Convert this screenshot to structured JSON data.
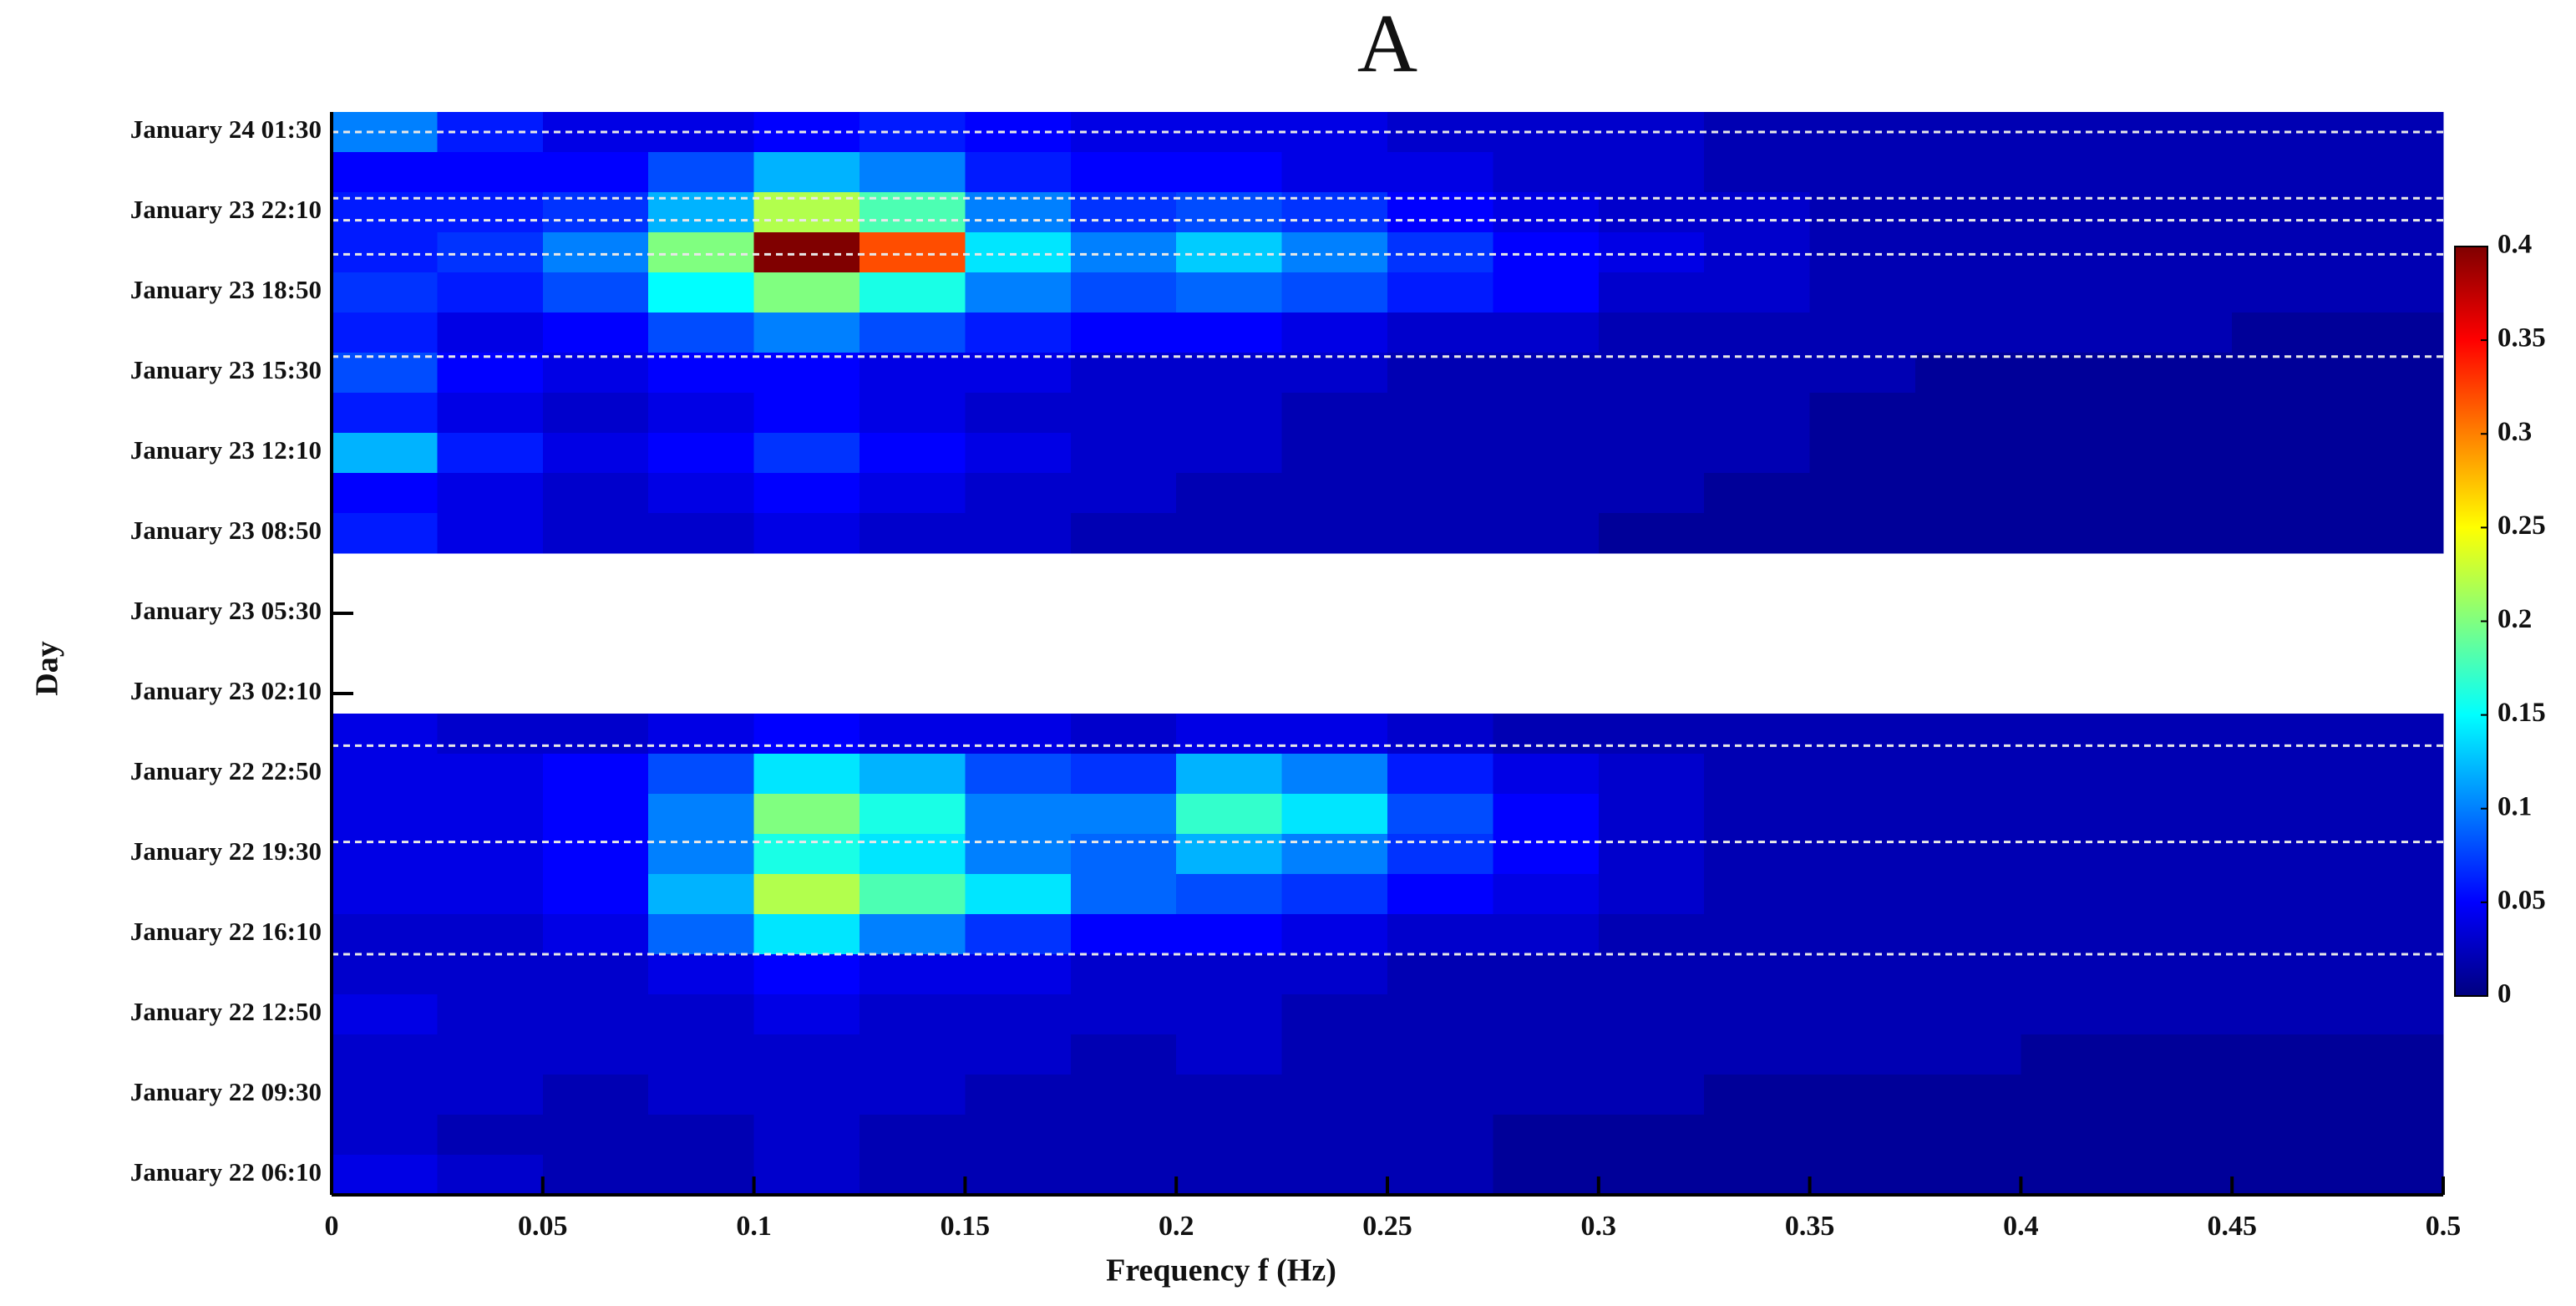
{
  "chart_data": {
    "type": "heatmap",
    "title": "A",
    "xlabel": "Frequency f (Hz)",
    "ylabel": "Day",
    "x_bins": [
      0,
      0.025,
      0.05,
      0.075,
      0.1,
      0.125,
      0.15,
      0.175,
      0.2,
      0.225,
      0.25,
      0.275,
      0.3,
      0.325,
      0.35,
      0.375,
      0.4,
      0.425,
      0.45,
      0.475,
      0.5
    ],
    "xlim": [
      0,
      0.5
    ],
    "xticks": [
      0,
      0.05,
      0.1,
      0.15,
      0.2,
      0.25,
      0.3,
      0.35,
      0.4,
      0.45,
      0.5
    ],
    "categories": [
      "January 24 01:30",
      null,
      "January 23 22:10",
      null,
      "January 23 18:50",
      null,
      "January 23 15:30",
      null,
      "January 23 12:10",
      null,
      "January 23 08:50",
      null,
      "January 23 05:30",
      null,
      "January 23 02:10",
      null,
      "January 22 22:50",
      null,
      "January 22 19:30",
      null,
      "January 22 16:10",
      null,
      "January 22 12:50",
      null,
      "January 22 09:30",
      null,
      "January 22 06:10"
    ],
    "values": [
      [
        0.1,
        0.06,
        0.04,
        0.04,
        0.05,
        0.06,
        0.05,
        0.04,
        0.04,
        0.04,
        0.03,
        0.03,
        0.03,
        0.02,
        0.02,
        0.02,
        0.02,
        0.02,
        0.02,
        0.02
      ],
      [
        0.05,
        0.05,
        0.05,
        0.08,
        0.12,
        0.1,
        0.06,
        0.05,
        0.05,
        0.04,
        0.04,
        0.03,
        0.03,
        0.02,
        0.02,
        0.02,
        0.02,
        0.02,
        0.02,
        0.02
      ],
      [
        0.06,
        0.06,
        0.07,
        0.12,
        0.22,
        0.18,
        0.1,
        0.07,
        0.08,
        0.07,
        0.05,
        0.04,
        0.03,
        0.03,
        0.02,
        0.02,
        0.02,
        0.02,
        0.02,
        0.02
      ],
      [
        0.06,
        0.07,
        0.1,
        0.2,
        0.4,
        0.32,
        0.14,
        0.1,
        0.13,
        0.1,
        0.07,
        0.05,
        0.04,
        0.03,
        0.02,
        0.02,
        0.02,
        0.02,
        0.02,
        0.02
      ],
      [
        0.07,
        0.06,
        0.08,
        0.15,
        0.2,
        0.16,
        0.1,
        0.08,
        0.09,
        0.08,
        0.06,
        0.05,
        0.03,
        0.03,
        0.02,
        0.02,
        0.02,
        0.02,
        0.02,
        0.02
      ],
      [
        0.06,
        0.04,
        0.05,
        0.08,
        0.1,
        0.08,
        0.06,
        0.05,
        0.05,
        0.04,
        0.03,
        0.03,
        0.02,
        0.02,
        0.02,
        0.02,
        0.02,
        0.02,
        0.01,
        0.01
      ],
      [
        0.08,
        0.05,
        0.04,
        0.05,
        0.05,
        0.04,
        0.04,
        0.03,
        0.03,
        0.03,
        0.02,
        0.02,
        0.02,
        0.02,
        0.02,
        0.01,
        0.01,
        0.01,
        0.01,
        0.01
      ],
      [
        0.06,
        0.04,
        0.03,
        0.04,
        0.05,
        0.04,
        0.03,
        0.03,
        0.03,
        0.02,
        0.02,
        0.02,
        0.02,
        0.02,
        0.01,
        0.01,
        0.01,
        0.01,
        0.01,
        0.01
      ],
      [
        0.12,
        0.06,
        0.04,
        0.05,
        0.07,
        0.05,
        0.04,
        0.03,
        0.03,
        0.02,
        0.02,
        0.02,
        0.02,
        0.02,
        0.01,
        0.01,
        0.01,
        0.01,
        0.01,
        0.01
      ],
      [
        0.05,
        0.04,
        0.03,
        0.04,
        0.05,
        0.04,
        0.03,
        0.03,
        0.02,
        0.02,
        0.02,
        0.02,
        0.02,
        0.01,
        0.01,
        0.01,
        0.01,
        0.01,
        0.01,
        0.01
      ],
      [
        0.06,
        0.04,
        0.03,
        0.03,
        0.04,
        0.03,
        0.03,
        0.02,
        0.02,
        0.02,
        0.02,
        0.02,
        0.01,
        0.01,
        0.01,
        0.01,
        0.01,
        0.01,
        0.01,
        0.01
      ],
      null,
      null,
      null,
      null,
      [
        0.04,
        0.03,
        0.03,
        0.04,
        0.05,
        0.04,
        0.04,
        0.03,
        0.04,
        0.04,
        0.03,
        0.02,
        0.02,
        0.02,
        0.02,
        0.02,
        0.02,
        0.02,
        0.02,
        0.02
      ],
      [
        0.04,
        0.04,
        0.05,
        0.08,
        0.14,
        0.12,
        0.08,
        0.07,
        0.12,
        0.1,
        0.06,
        0.04,
        0.03,
        0.02,
        0.02,
        0.02,
        0.02,
        0.02,
        0.02,
        0.02
      ],
      [
        0.04,
        0.04,
        0.05,
        0.1,
        0.2,
        0.16,
        0.1,
        0.1,
        0.17,
        0.14,
        0.08,
        0.05,
        0.03,
        0.02,
        0.02,
        0.02,
        0.02,
        0.02,
        0.02,
        0.02
      ],
      [
        0.04,
        0.04,
        0.05,
        0.1,
        0.16,
        0.14,
        0.1,
        0.09,
        0.12,
        0.1,
        0.07,
        0.05,
        0.03,
        0.02,
        0.02,
        0.02,
        0.02,
        0.02,
        0.02,
        0.02
      ],
      [
        0.04,
        0.04,
        0.05,
        0.12,
        0.22,
        0.18,
        0.14,
        0.09,
        0.08,
        0.07,
        0.05,
        0.04,
        0.03,
        0.02,
        0.02,
        0.02,
        0.02,
        0.02,
        0.02,
        0.02
      ],
      [
        0.03,
        0.03,
        0.04,
        0.09,
        0.14,
        0.1,
        0.07,
        0.05,
        0.05,
        0.04,
        0.03,
        0.03,
        0.02,
        0.02,
        0.02,
        0.02,
        0.02,
        0.02,
        0.02,
        0.02
      ],
      [
        0.03,
        0.03,
        0.03,
        0.04,
        0.05,
        0.04,
        0.04,
        0.03,
        0.03,
        0.03,
        0.02,
        0.02,
        0.02,
        0.02,
        0.02,
        0.02,
        0.02,
        0.02,
        0.02,
        0.02
      ],
      [
        0.04,
        0.03,
        0.03,
        0.03,
        0.04,
        0.03,
        0.03,
        0.03,
        0.03,
        0.02,
        0.02,
        0.02,
        0.02,
        0.02,
        0.02,
        0.02,
        0.02,
        0.02,
        0.02,
        0.02
      ],
      [
        0.03,
        0.03,
        0.03,
        0.03,
        0.03,
        0.03,
        0.03,
        0.02,
        0.03,
        0.02,
        0.02,
        0.02,
        0.02,
        0.02,
        0.02,
        0.02,
        0.01,
        0.01,
        0.01,
        0.01
      ],
      [
        0.03,
        0.03,
        0.02,
        0.03,
        0.03,
        0.03,
        0.02,
        0.02,
        0.02,
        0.02,
        0.02,
        0.02,
        0.02,
        0.01,
        0.01,
        0.01,
        0.01,
        0.01,
        0.01,
        0.01
      ],
      [
        0.03,
        0.02,
        0.02,
        0.02,
        0.03,
        0.02,
        0.02,
        0.02,
        0.02,
        0.02,
        0.02,
        0.01,
        0.01,
        0.01,
        0.01,
        0.01,
        0.01,
        0.01,
        0.01,
        0.01
      ],
      [
        0.04,
        0.03,
        0.02,
        0.02,
        0.03,
        0.02,
        0.02,
        0.02,
        0.02,
        0.02,
        0.02,
        0.01,
        0.01,
        0.01,
        0.01,
        0.01,
        0.01,
        0.01,
        0.01,
        0.01
      ]
    ],
    "reference_lines": [
      0,
      1.65,
      2.2,
      3.05,
      5.6,
      15.3,
      17.7,
      20.5
    ],
    "colormap": "jet",
    "clim": [
      0,
      0.4
    ],
    "cticks": [
      0,
      0.05,
      0.1,
      0.15,
      0.2,
      0.25,
      0.3,
      0.35,
      0.4
    ]
  }
}
